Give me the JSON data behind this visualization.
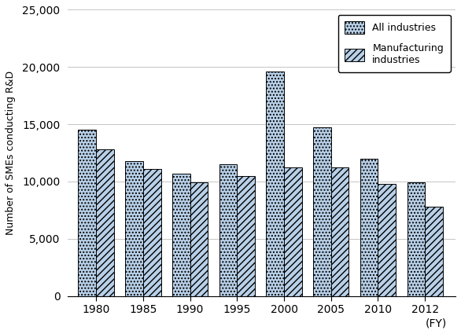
{
  "years": [
    "1980",
    "1985",
    "1990",
    "1995",
    "2000",
    "2005",
    "2010",
    "2012"
  ],
  "all_industries": [
    14500,
    11800,
    10700,
    11500,
    19600,
    14700,
    12000,
    9900
  ],
  "manufacturing": [
    12800,
    11100,
    9900,
    10500,
    11200,
    11200,
    9800,
    7800
  ],
  "bar_color_all": "#b8d0e8",
  "bar_color_mfg": "#b8d0e8",
  "bar_edge_color": "#000000",
  "ylabel": "Number of SMEs conducting R&D",
  "xlabel_note": "(FY)",
  "ylim": [
    0,
    25000
  ],
  "yticks": [
    0,
    5000,
    10000,
    15000,
    20000,
    25000
  ],
  "legend_all": "All industries",
  "legend_mfg": "Manufacturing\nindustries",
  "bar_width": 0.38
}
